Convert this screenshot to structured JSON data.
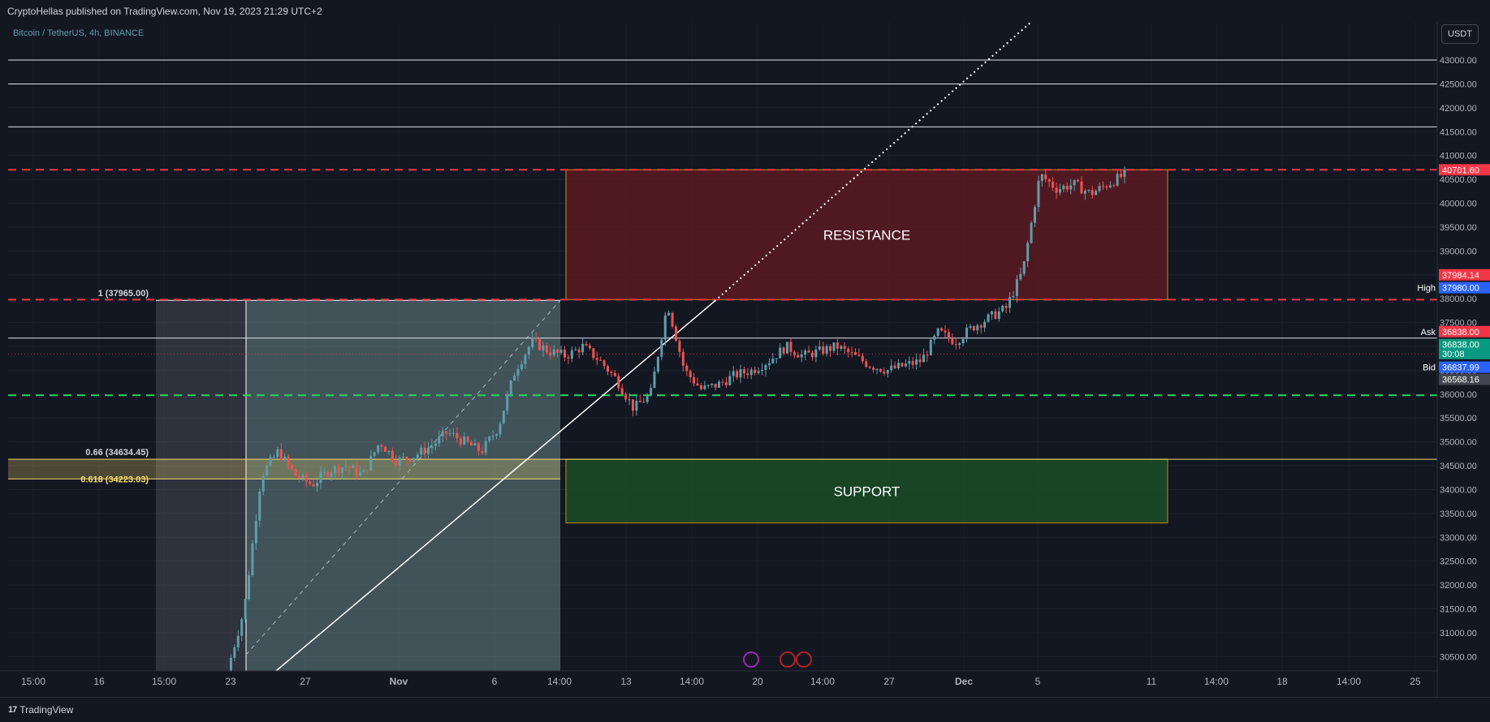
{
  "header": {
    "published_text": "CryptoHellas published on TradingView.com, Nov 19, 2023 21:29 UTC+2"
  },
  "footer": {
    "brand": "TradingView",
    "logo": "17"
  },
  "toolbar": {
    "currency": "USDT"
  },
  "symbol_legend": "Bitcoin / TetherUS, 4h, BINANCE",
  "colors": {
    "background": "#131722",
    "up_candle": "#5f9ea8",
    "down_candle": "#ef5350",
    "resistance_fill": "#5b1a22",
    "support_fill": "#1b4d27",
    "zone_border": "#e0a800",
    "red_dashed": "#f23645",
    "green_dashed": "#22d65b",
    "fib_yellow": "#f7dc6f"
  },
  "chart_data": {
    "type": "candlestick",
    "title": "",
    "ylim": [
      30200,
      43800
    ],
    "y_ticks": [
      30500,
      31000,
      31500,
      32000,
      32500,
      33000,
      33500,
      34000,
      34500,
      35000,
      35500,
      36000,
      36500,
      37000,
      37500,
      38000,
      38500,
      39000,
      39500,
      40000,
      40500,
      41000,
      41500,
      42000,
      42500,
      43000
    ],
    "y_tick_labels": [
      "30500.00",
      "31000.00",
      "31500.00",
      "32000.00",
      "32500.00",
      "33000.00",
      "33500.00",
      "34000.00",
      "34500.00",
      "35000.00",
      "35500.00",
      "36000.00",
      "36500.00",
      "37000.00",
      "37500.00",
      "38000.00",
      "38500.00",
      "39000.00",
      "39500.00",
      "40000.00",
      "40500.00",
      "41000.00",
      "41500.00",
      "42000.00",
      "42500.00",
      "43000.00"
    ],
    "x_tick_labels": [
      "15:00",
      "16",
      "15:00",
      "23",
      "27",
      "Nov",
      "6",
      "14:00",
      "13",
      "14:00",
      "20",
      "14:00",
      "27",
      "Dec",
      "5",
      "11",
      "14:00",
      "18",
      "14:00",
      "25"
    ],
    "price_path": [
      [
        0,
        30200
      ],
      [
        3,
        31500
      ],
      [
        6,
        34300
      ],
      [
        9,
        34800
      ],
      [
        12,
        34300
      ],
      [
        15,
        34100
      ],
      [
        18,
        34400
      ],
      [
        21,
        34500
      ],
      [
        24,
        34300
      ],
      [
        27,
        35000
      ],
      [
        30,
        34600
      ],
      [
        33,
        34700
      ],
      [
        36,
        34900
      ],
      [
        39,
        35200
      ],
      [
        42,
        35000
      ],
      [
        45,
        34800
      ],
      [
        48,
        35300
      ],
      [
        51,
        36500
      ],
      [
        54,
        37100
      ],
      [
        57,
        36900
      ],
      [
        60,
        36800
      ],
      [
        63,
        37000
      ],
      [
        66,
        36700
      ],
      [
        69,
        36300
      ],
      [
        72,
        35700
      ],
      [
        75,
        36000
      ],
      [
        78,
        37900
      ],
      [
        81,
        36500
      ],
      [
        84,
        36100
      ],
      [
        87,
        36200
      ],
      [
        90,
        36400
      ],
      [
        93,
        36500
      ],
      [
        96,
        36700
      ],
      [
        99,
        37000
      ],
      [
        102,
        36800
      ],
      [
        105,
        36900
      ],
      [
        108,
        37000
      ],
      [
        111,
        36800
      ],
      [
        114,
        36600
      ],
      [
        117,
        36500
      ],
      [
        120,
        36600
      ],
      [
        123,
        36700
      ],
      [
        126,
        37300
      ],
      [
        129,
        37100
      ],
      [
        132,
        37400
      ],
      [
        135,
        37600
      ],
      [
        138,
        37800
      ],
      [
        141,
        38600
      ],
      [
        144,
        40600
      ],
      [
        147,
        40300
      ],
      [
        150,
        40400
      ],
      [
        153,
        40200
      ],
      [
        156,
        40400
      ],
      [
        159,
        40600
      ]
    ],
    "horizontal_lines": [
      {
        "price": 43000,
        "style": "solid",
        "color": "white"
      },
      {
        "price": 42500,
        "style": "solid",
        "color": "white"
      },
      {
        "price": 41600,
        "style": "solid",
        "color": "white"
      },
      {
        "price": 40701.6,
        "style": "dashed",
        "color": "red"
      },
      {
        "price": 37980,
        "style": "dashed",
        "color": "red"
      },
      {
        "price": 37175,
        "style": "solid",
        "color": "white"
      },
      {
        "price": 36837.99,
        "style": "dotted",
        "color": "red"
      },
      {
        "price": 35975,
        "style": "dashed",
        "color": "green"
      },
      {
        "price": 34634.45,
        "style": "solid",
        "color": "yellow"
      }
    ],
    "zones": [
      {
        "label": "RESISTANCE",
        "top": 40701.6,
        "bottom": 37980
      },
      {
        "label": "SUPPORT",
        "top": 34634.45,
        "bottom": 33300
      }
    ],
    "fib_levels": [
      {
        "label": "1 (37965.00)",
        "price": 37965
      },
      {
        "label": "0.66 (34634.45)",
        "price": 34634.45
      },
      {
        "label": "0.618 (34223.03)",
        "price": 34223.03
      }
    ],
    "price_tags": [
      {
        "text": "40701.60",
        "price": 40701.6,
        "color": "#f23645"
      },
      {
        "text": "37984.14",
        "price": 38500,
        "color": "#f23645"
      },
      {
        "text": "37980.00",
        "price": 38230,
        "color": "#2962ff",
        "prefix": "High"
      },
      {
        "text": "36838.00",
        "price": 37310,
        "color": "#f23645",
        "prefix": "Ask"
      },
      {
        "text": "36838.00",
        "price": 37040,
        "color": "#089981"
      },
      {
        "text": "30:08",
        "price": 36850,
        "color": "#089981"
      },
      {
        "text": "36837.99",
        "price": 36565,
        "color": "#2962ff",
        "prefix": "Bid"
      },
      {
        "text": "36568.16",
        "price": 36310,
        "color": "#434651"
      }
    ],
    "annotations": [
      "RESISTANCE",
      "SUPPORT"
    ]
  }
}
